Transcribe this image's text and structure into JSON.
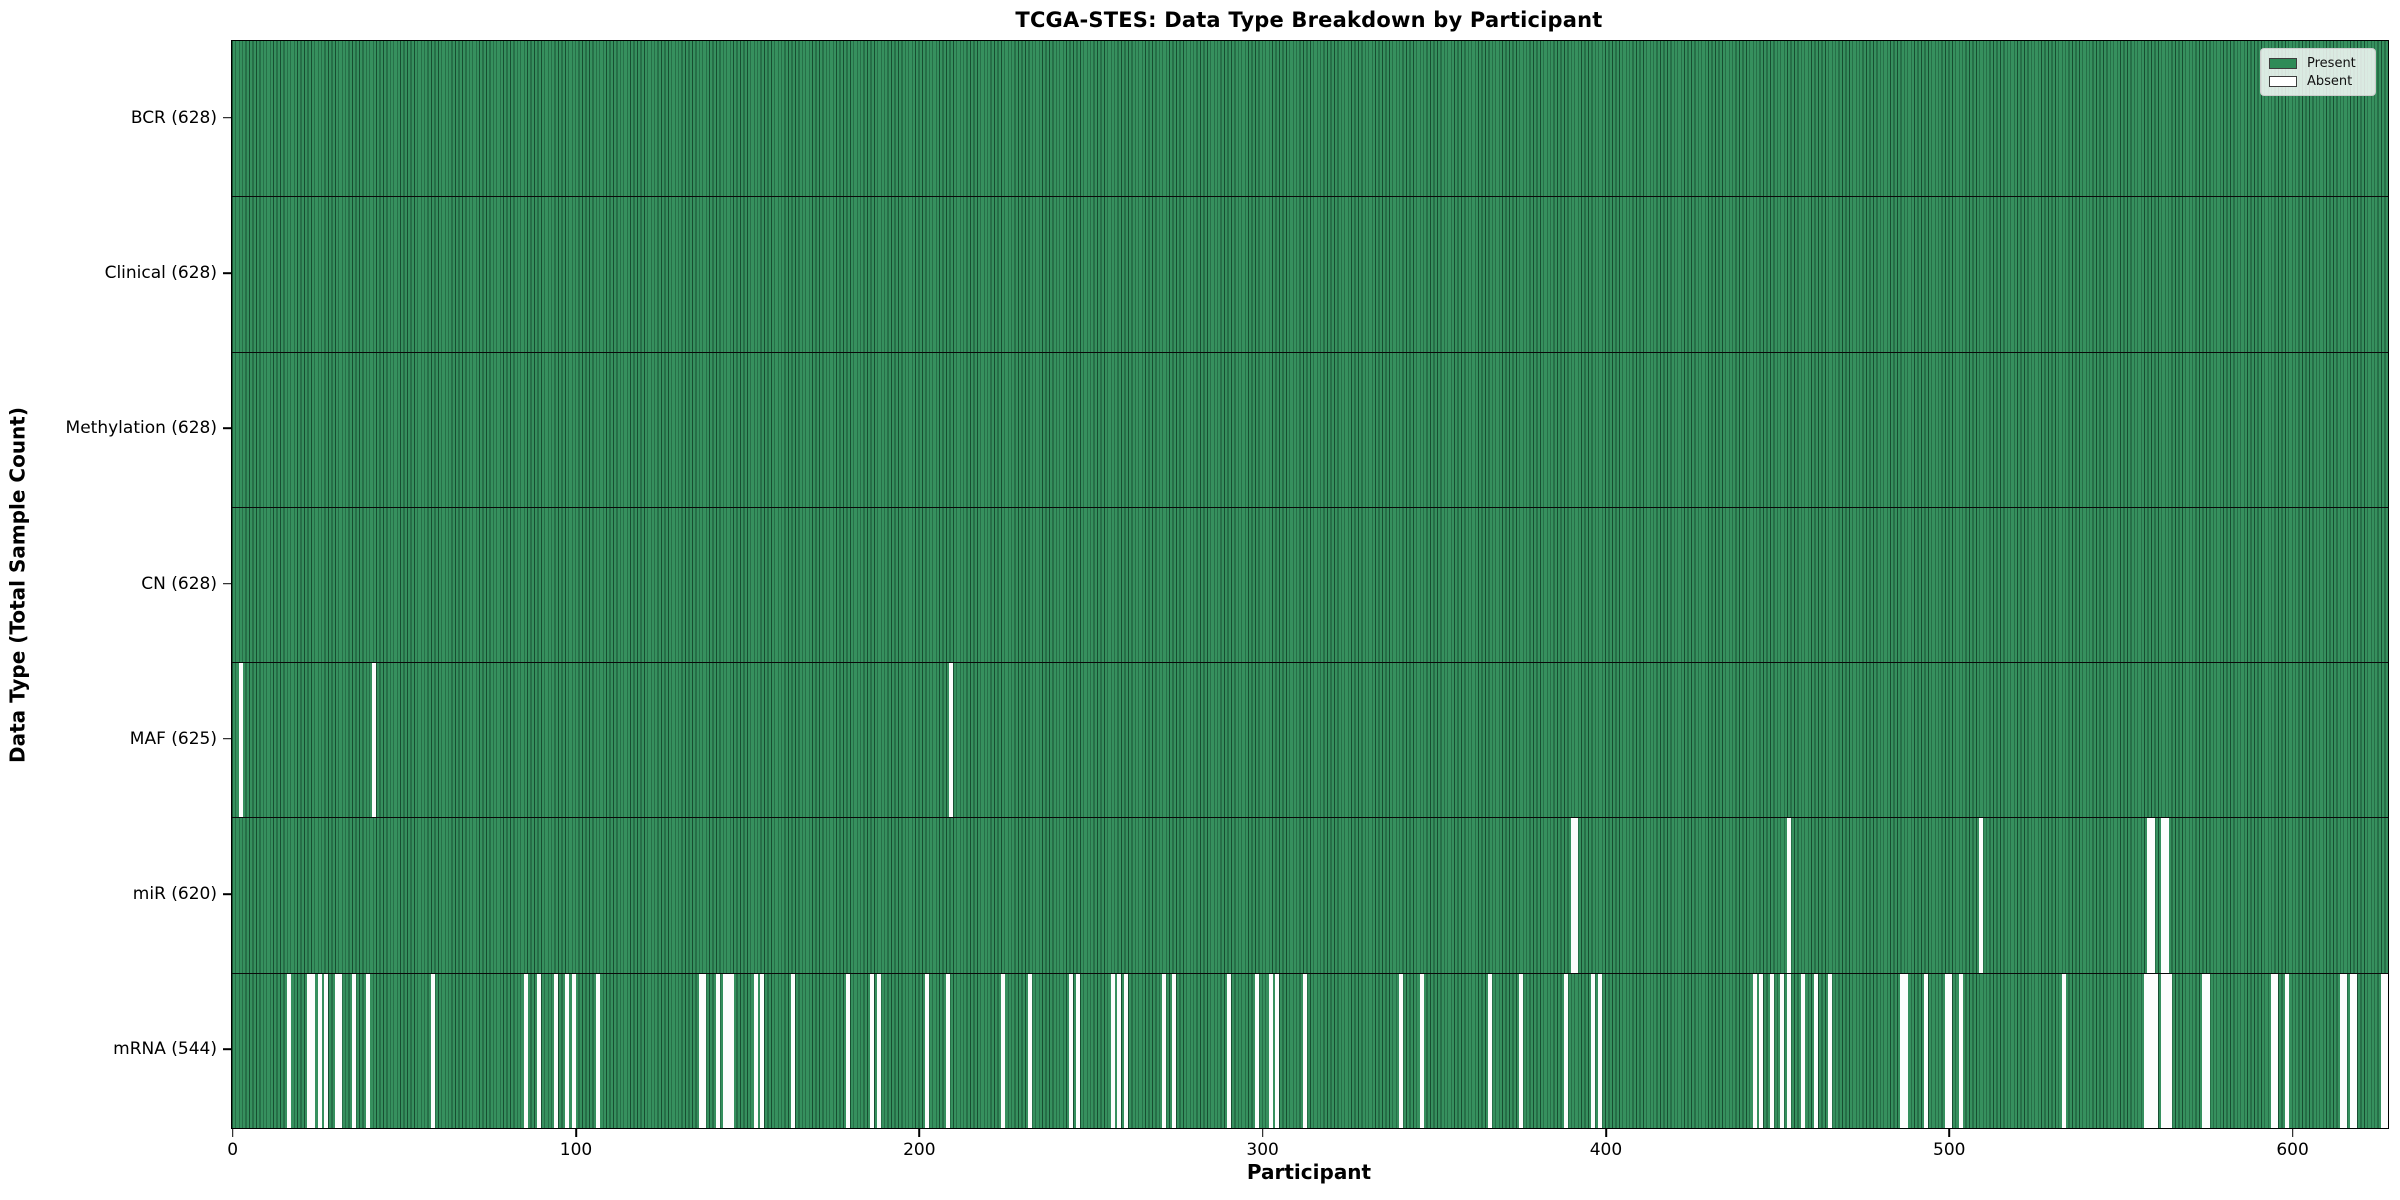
{
  "chart_data": {
    "type": "heatmap",
    "title": "TCGA-STES: Data Type Breakdown by Participant",
    "xlabel": "Participant",
    "ylabel": "Data Type (Total Sample Count)",
    "x_ticks": [
      0,
      100,
      200,
      300,
      400,
      500,
      600
    ],
    "x_range": [
      0,
      628
    ],
    "n_participants": 628,
    "grid": false,
    "legend_position": "upper right",
    "colors": {
      "present": "#2e8b57",
      "absent": "#ffffff",
      "bar_edge": "rgba(8,38,24,0.6)",
      "row_separator": "#0a0a0a"
    },
    "legend": [
      {
        "label": "Present",
        "color": "#2e8b57"
      },
      {
        "label": "Absent",
        "color": "#ffffff"
      }
    ],
    "rows": [
      {
        "label": "BCR (628)",
        "data_type": "BCR",
        "present_count": 628,
        "absent_participants": []
      },
      {
        "label": "Clinical (628)",
        "data_type": "Clinical",
        "present_count": 628,
        "absent_participants": []
      },
      {
        "label": "Methylation (628)",
        "data_type": "Methylation",
        "present_count": 628,
        "absent_participants": []
      },
      {
        "label": "CN (628)",
        "data_type": "CN",
        "present_count": 628,
        "absent_participants": []
      },
      {
        "label": "MAF (625)",
        "data_type": "MAF",
        "present_count": 625,
        "absent_participants": [
          2,
          41,
          209
        ]
      },
      {
        "label": "miR (620)",
        "data_type": "miR",
        "present_count": 620,
        "absent_participants": [
          390,
          391,
          453,
          509,
          558,
          559,
          562,
          563
        ]
      },
      {
        "label": "mRNA (544)",
        "data_type": "mRNA",
        "present_count": 544,
        "absent_participants": [
          16,
          22,
          23,
          25,
          27,
          30,
          31,
          35,
          39,
          58,
          85,
          89,
          94,
          97,
          99,
          106,
          136,
          137,
          141,
          143,
          144,
          145,
          152,
          154,
          163,
          179,
          186,
          188,
          202,
          208,
          224,
          232,
          244,
          246,
          256,
          258,
          260,
          271,
          274,
          290,
          298,
          302,
          304,
          312,
          340,
          346,
          366,
          375,
          388,
          396,
          398,
          443,
          445,
          448,
          451,
          453,
          457,
          461,
          465,
          486,
          487,
          493,
          499,
          500,
          503,
          533,
          557,
          558,
          559,
          560,
          562,
          563,
          564,
          574,
          575,
          594,
          595,
          598,
          614,
          615,
          617,
          618,
          626,
          627
        ]
      }
    ]
  }
}
